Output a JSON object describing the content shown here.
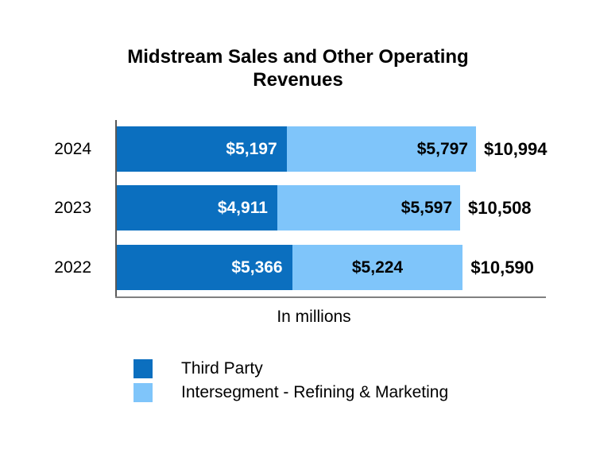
{
  "title_lines": [
    "Midstream Sales and Other Operating",
    "Revenues"
  ],
  "chart_data": {
    "type": "bar",
    "orientation": "horizontal-stacked",
    "title": "Midstream Sales and Other Operating Revenues",
    "xlabel": "In millions",
    "categories": [
      "2024",
      "2023",
      "2022"
    ],
    "series": [
      {
        "name": "Third Party",
        "color": "#0B6FBF",
        "values": [
          5197,
          4911,
          5366
        ]
      },
      {
        "name": "Intersegment - Refining & Marketing",
        "color": "#7FC5FA",
        "values": [
          5797,
          5597,
          5224
        ]
      }
    ],
    "totals": [
      10994,
      10508,
      10590
    ],
    "value_labels": {
      "third_party": [
        "$5,197",
        "$4,911",
        "$5,366"
      ],
      "intersegment": [
        "$5,797",
        "$5,597",
        "$5,224"
      ],
      "totals": [
        "$10,994",
        "$10,508",
        "$10,590"
      ]
    },
    "legend_position": "bottom-left",
    "grid": false
  },
  "rows": [
    {
      "year": "2024",
      "third_party": "$5,197",
      "intersegment": "$5,797",
      "total": "$10,994"
    },
    {
      "year": "2023",
      "third_party": "$4,911",
      "intersegment": "$5,597",
      "total": "$10,508"
    },
    {
      "year": "2022",
      "third_party": "$5,366",
      "intersegment": "$5,224",
      "total": "$10,590"
    }
  ],
  "legend": {
    "items": [
      {
        "label": "Third Party"
      },
      {
        "label": "Intersegment - Refining & Marketing"
      }
    ]
  },
  "colors": {
    "third_party": "#0B6FBF",
    "intersegment": "#7FC5FA",
    "axis_vertical": "#595959",
    "axis_horizontal": "#808080",
    "text": "#000000",
    "dark_segment_text": "#FFFFFF"
  }
}
